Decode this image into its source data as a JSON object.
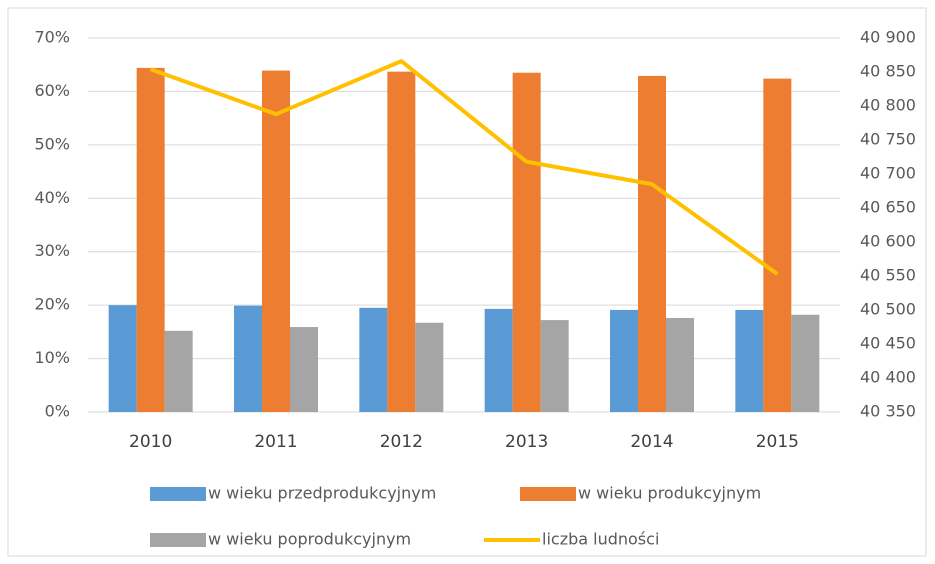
{
  "chart_data": {
    "type": "bar",
    "categories": [
      "2010",
      "2011",
      "2012",
      "2013",
      "2014",
      "2015"
    ],
    "series": [
      {
        "name": "w wieku przedprodukcyjnym",
        "color": "#5b9bd5",
        "values": [
          20.0,
          19.9,
          19.5,
          19.3,
          19.1,
          19.1
        ]
      },
      {
        "name": "w wieku produkcyjnym",
        "color": "#ed7d31",
        "values": [
          64.4,
          63.9,
          63.7,
          63.5,
          62.9,
          62.4
        ]
      },
      {
        "name": "w wieku poprodukcyjnym",
        "color": "#a5a5a5",
        "values": [
          15.2,
          15.9,
          16.7,
          17.2,
          17.6,
          18.2
        ]
      },
      {
        "name": "liczba ludności",
        "color": "#ffc000",
        "type": "line",
        "axis": "y2",
        "values": [
          40854,
          40788,
          40866,
          40718,
          40685,
          40553
        ]
      }
    ],
    "ylim": [
      0,
      70
    ],
    "yticks": [
      {
        "value": 0,
        "label": "0%"
      },
      {
        "value": 10,
        "label": "10%"
      },
      {
        "value": 20,
        "label": "20%"
      },
      {
        "value": 30,
        "label": "30%"
      },
      {
        "value": 40,
        "label": "40%"
      },
      {
        "value": 50,
        "label": "50%"
      },
      {
        "value": 60,
        "label": "60%"
      },
      {
        "value": 70,
        "label": "70%"
      }
    ],
    "y2lim": [
      40350,
      40900
    ],
    "y2ticks": [
      {
        "value": 40350,
        "label": "40 350"
      },
      {
        "value": 40400,
        "label": "40 400"
      },
      {
        "value": 40450,
        "label": "40 450"
      },
      {
        "value": 40500,
        "label": "40 500"
      },
      {
        "value": 40550,
        "label": "40 550"
      },
      {
        "value": 40600,
        "label": "40 600"
      },
      {
        "value": 40650,
        "label": "40 650"
      },
      {
        "value": 40700,
        "label": "40 700"
      },
      {
        "value": 40750,
        "label": "40 750"
      },
      {
        "value": 40800,
        "label": "40 800"
      },
      {
        "value": 40850,
        "label": "40 850"
      },
      {
        "value": 40900,
        "label": "40 900"
      }
    ],
    "grid": true,
    "legend": "bottom"
  }
}
